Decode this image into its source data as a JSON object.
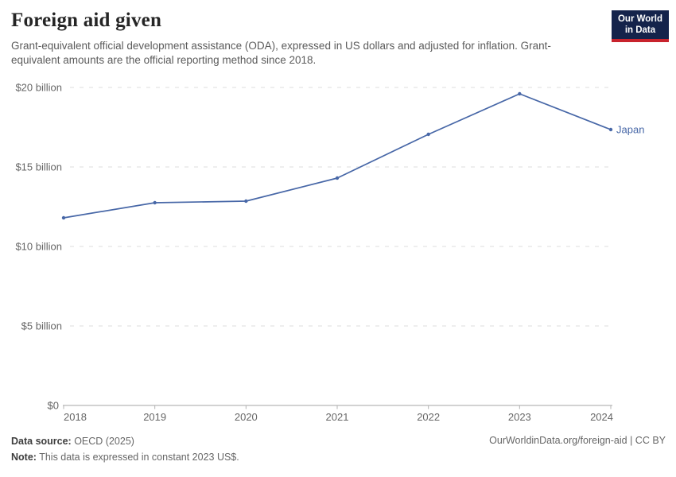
{
  "header": {
    "title": "Foreign aid given",
    "subtitle": "Grant-equivalent official development assistance (ODA), expressed in US dollars and adjusted for inflation. Grant-equivalent amounts are the official reporting method since 2018.",
    "logo": {
      "line1": "Our World",
      "line2": "in Data"
    }
  },
  "chart_data": {
    "type": "line",
    "title": "Foreign aid given",
    "x": [
      2018,
      2019,
      2020,
      2021,
      2022,
      2023,
      2024
    ],
    "xtick_labels": [
      "2018",
      "2019",
      "2020",
      "2021",
      "2022",
      "2023",
      "2024"
    ],
    "series": [
      {
        "name": "Japan",
        "values": [
          11.8,
          12.75,
          12.85,
          14.3,
          17.05,
          19.6,
          17.35
        ]
      }
    ],
    "unit": "US$ billion",
    "ylim": [
      0,
      20
    ],
    "yticks": [
      0,
      5,
      10,
      15,
      20
    ],
    "ytick_labels": [
      "$0",
      "$5 billion",
      "$10 billion",
      "$15 billion",
      "$20 billion"
    ],
    "grid": "horizontal-dashed",
    "legend_position": "end-of-line-label",
    "end_label": "Japan"
  },
  "footer": {
    "source_label": "Data source:",
    "source_value": " OECD (2025)",
    "note_label": "Note:",
    "note_value": " This data is expressed in constant 2023 US$.",
    "right": "OurWorldinData.org/foreign-aid | CC BY"
  },
  "colors": {
    "line": "#4767a7",
    "grid": "#dcdcdc",
    "axis": "#a5a5a5",
    "tick": "#b3b3b3",
    "muted_text": "#666666",
    "logo_bg": "#14234b",
    "logo_red": "#c8232d"
  }
}
